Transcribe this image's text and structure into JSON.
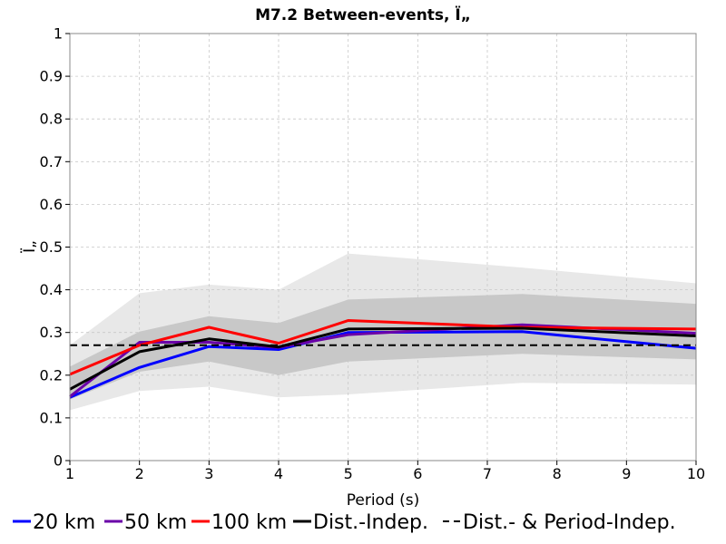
{
  "chart_data": {
    "type": "line",
    "title": "M7.2 Between-events, Ï„",
    "xlabel": "Period (s)",
    "ylabel": "Ï„",
    "xlim": [
      1,
      10
    ],
    "ylim": [
      0,
      1
    ],
    "x_ticks": [
      1,
      2,
      3,
      4,
      5,
      6,
      7,
      8,
      9,
      10
    ],
    "y_ticks": [
      0,
      0.1,
      0.2,
      0.3,
      0.4,
      0.5,
      0.6,
      0.7,
      0.8,
      0.9,
      1
    ],
    "x_tick_labels": [
      "1",
      "2",
      "3",
      "4",
      "5",
      "6",
      "7",
      "8",
      "9",
      "10"
    ],
    "y_tick_labels": [
      "0",
      "0.1",
      "0.2",
      "0.3",
      "0.4",
      "0.5",
      "0.6",
      "0.7",
      "0.8",
      "0.9",
      "1"
    ],
    "grid": true,
    "legend_position": "bottom",
    "x": [
      1,
      2,
      3,
      4,
      5,
      7.5,
      10
    ],
    "series": [
      {
        "name": "20 km",
        "color": "#0000ff",
        "style": "solid",
        "values": [
          0.148,
          0.218,
          0.267,
          0.26,
          0.3,
          0.302,
          0.263
        ]
      },
      {
        "name": "50 km",
        "color": "#6a00a8",
        "style": "solid",
        "values": [
          0.15,
          0.277,
          0.277,
          0.265,
          0.295,
          0.318,
          0.298
        ]
      },
      {
        "name": "100 km",
        "color": "#ff0000",
        "style": "solid",
        "values": [
          0.202,
          0.27,
          0.312,
          0.275,
          0.328,
          0.312,
          0.308
        ]
      },
      {
        "name": "Dist.-Indep.",
        "color": "#000000",
        "style": "solid",
        "values": [
          0.167,
          0.255,
          0.285,
          0.266,
          0.308,
          0.31,
          0.292
        ]
      },
      {
        "name": "Dist.- & Period-Indep.",
        "color": "#000000",
        "style": "dashed",
        "values": [
          0.27,
          0.27,
          0.27,
          0.27,
          0.27,
          0.27,
          0.27
        ]
      }
    ],
    "bands": [
      {
        "color": "#e8e8e8",
        "upper": [
          0.27,
          0.392,
          0.412,
          0.4,
          0.485,
          0.452,
          0.415
        ],
        "lower": [
          0.118,
          0.163,
          0.173,
          0.148,
          0.155,
          0.182,
          0.178
        ]
      },
      {
        "color": "#c8c8c8",
        "upper": [
          0.22,
          0.302,
          0.338,
          0.322,
          0.377,
          0.39,
          0.367
        ],
        "lower": [
          0.143,
          0.208,
          0.232,
          0.2,
          0.232,
          0.25,
          0.237
        ]
      }
    ]
  }
}
